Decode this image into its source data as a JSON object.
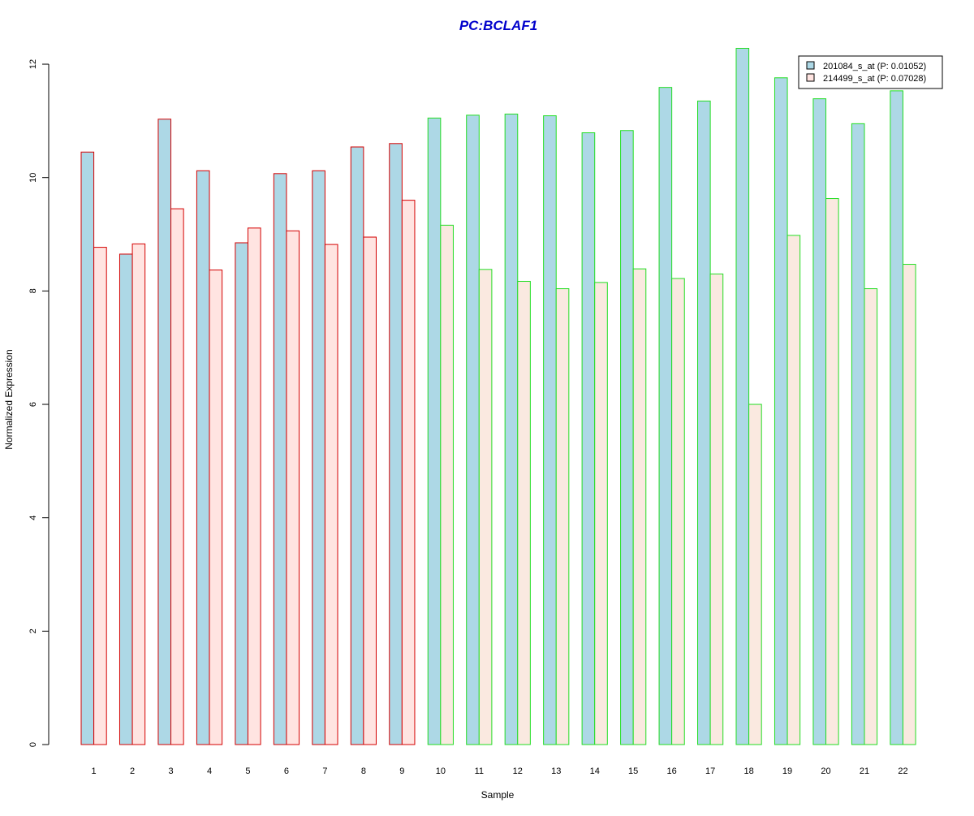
{
  "chart_data": {
    "type": "bar",
    "title": "PC:BCLAF1",
    "xlabel": "Sample",
    "ylabel": "Normalized Expression",
    "ylim": [
      0,
      12.5
    ],
    "yticks": [
      0,
      2,
      4,
      6,
      8,
      10,
      12
    ],
    "grid": false,
    "legend_position": "top-right",
    "categories": [
      "1",
      "2",
      "3",
      "4",
      "5",
      "6",
      "7",
      "8",
      "9",
      "10",
      "11",
      "12",
      "13",
      "14",
      "15",
      "16",
      "17",
      "18",
      "19",
      "20",
      "21",
      "22"
    ],
    "series": [
      {
        "name": "201084_s_at (P: 0.01052)",
        "fill": "#add8e6",
        "values": [
          10.45,
          8.65,
          11.03,
          10.12,
          8.85,
          10.07,
          10.12,
          10.54,
          10.6,
          11.05,
          11.1,
          11.12,
          11.09,
          10.79,
          10.83,
          11.59,
          11.35,
          12.28,
          11.76,
          11.39,
          10.95,
          11.53
        ]
      },
      {
        "name": "214499_s_at (P: 0.07028)",
        "fill_group1": "#ffe4e1",
        "fill_group2": "#fae9e0",
        "values": [
          8.77,
          8.83,
          9.45,
          8.37,
          9.11,
          9.06,
          8.82,
          8.95,
          9.6,
          9.16,
          8.38,
          8.17,
          8.04,
          8.15,
          8.39,
          8.22,
          8.3,
          6.0,
          8.98,
          9.63,
          8.04,
          8.47
        ]
      }
    ],
    "group_border_colors": [
      "#d40000",
      "#d40000",
      "#d40000",
      "#d40000",
      "#d40000",
      "#d40000",
      "#d40000",
      "#d40000",
      "#d40000",
      "#22dd22",
      "#22dd22",
      "#22dd22",
      "#22dd22",
      "#22dd22",
      "#22dd22",
      "#22dd22",
      "#22dd22",
      "#22dd22",
      "#22dd22",
      "#22dd22",
      "#22dd22",
      "#22dd22"
    ],
    "title_color": "#0000cc"
  }
}
